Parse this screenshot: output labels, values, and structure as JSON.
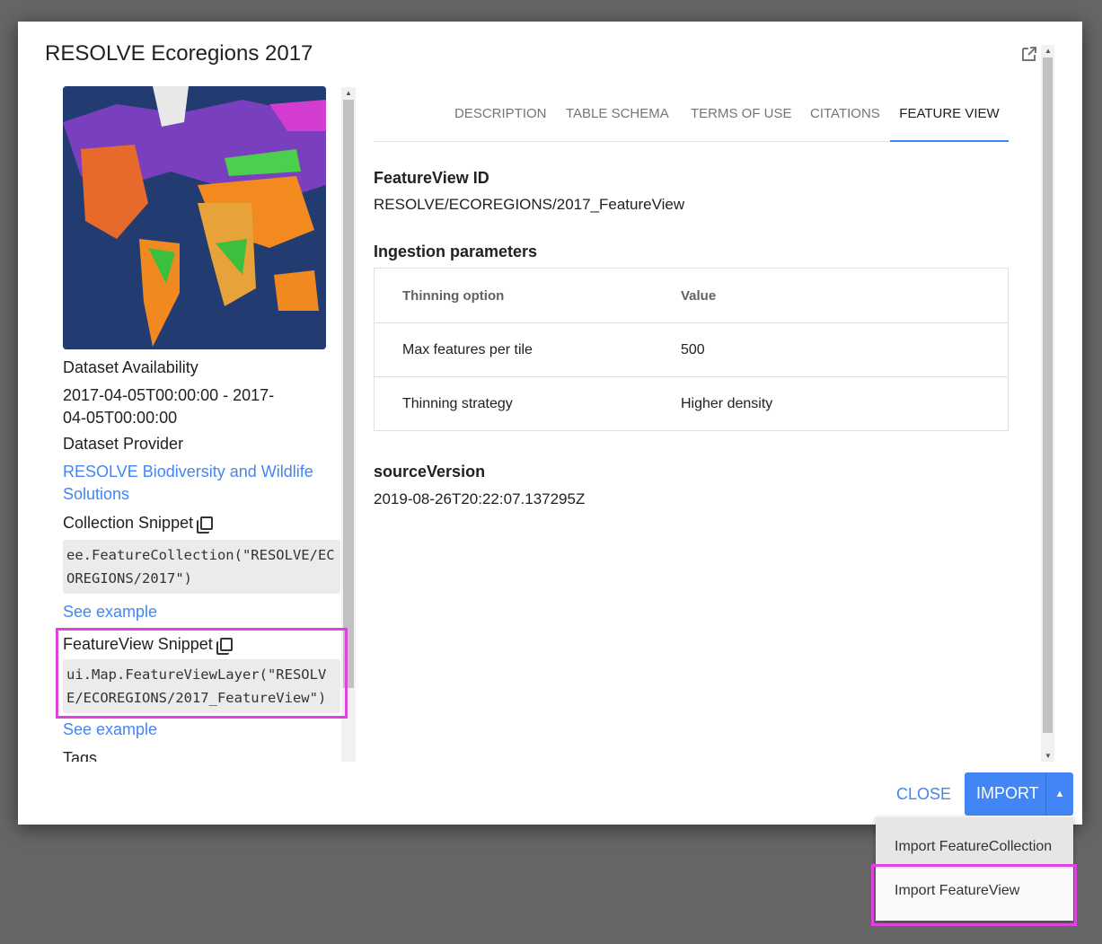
{
  "title": "RESOLVE Ecoregions 2017",
  "left": {
    "availability_label": "Dataset Availability",
    "availability_value": "2017-04-05T00:00:00 - 2017-04-05T00:00:00",
    "provider_label": "Dataset Provider",
    "provider_link": "RESOLVE Biodiversity and Wildlife Solutions",
    "collection_label": "Collection Snippet",
    "collection_code": "ee.FeatureCollection(\"RESOLVE/ECOREGIONS/2017\")",
    "see_example_1": "See example",
    "featureview_label": "FeatureView Snippet",
    "featureview_code": "ui.Map.FeatureViewLayer(\"RESOLVE/ECOREGIONS/2017_FeatureView\")",
    "see_example_2": "See example",
    "tags_label": "Tags"
  },
  "tabs": [
    "DESCRIPTION",
    "TABLE SCHEMA",
    "TERMS OF USE",
    "CITATIONS",
    "FEATURE VIEW"
  ],
  "main": {
    "fv_id_label": "FeatureView ID",
    "fv_id_value": "RESOLVE/ECOREGIONS/2017_FeatureView",
    "ingestion_label": "Ingestion parameters",
    "table": {
      "headers": [
        "Thinning option",
        "Value"
      ],
      "rows": [
        [
          "Max features per tile",
          "500"
        ],
        [
          "Thinning strategy",
          "Higher density"
        ]
      ]
    },
    "source_label": "sourceVersion",
    "source_value": "2019-08-26T20:22:07.137295Z"
  },
  "footer": {
    "close": "CLOSE",
    "import": "IMPORT"
  },
  "menu": [
    "Import FeatureCollection",
    "Import FeatureView"
  ],
  "colors": {
    "accent": "#4285f4",
    "highlight": "#dd44dd"
  }
}
